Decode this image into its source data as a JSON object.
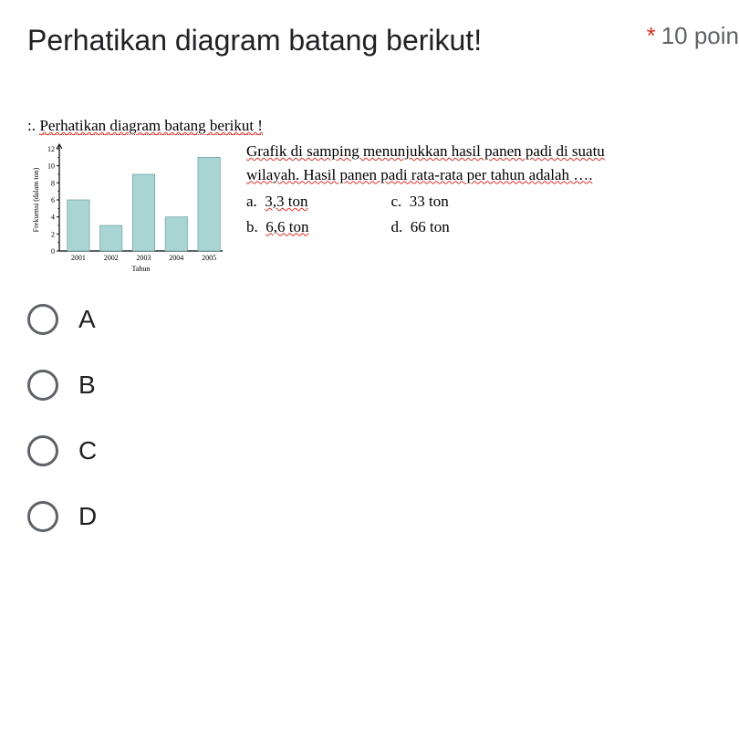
{
  "question": {
    "title": "Perhatikan diagram batang berikut!",
    "required_marker": "*",
    "points_label": "10 poin"
  },
  "embedded": {
    "prefix_number": ":.",
    "title": "Perhatikan diagram batang berikut !",
    "description_line1": "Grafik di samping menunjukkan hasil panen padi di suatu",
    "description_line2": "wilayah. Hasil panen padi rata-rata per tahun adalah ….",
    "choices": {
      "a": {
        "letter": "a.",
        "text": "3,3 ton"
      },
      "b": {
        "letter": "b.",
        "text": "6,6 ton"
      },
      "c": {
        "letter": "c.",
        "text": "33 ton"
      },
      "d": {
        "letter": "d.",
        "text": "66 ton"
      }
    }
  },
  "chart": {
    "type": "bar",
    "ylabel": "Frekuensi (dalam ton)",
    "xlabel": "Tahun",
    "categories": [
      "2001",
      "2002",
      "2003",
      "2004",
      "2005"
    ],
    "values": [
      6,
      3,
      9,
      4,
      11
    ],
    "bar_color": "#a9d4d4",
    "bar_stroke": "#5a9494",
    "axis_color": "#000000",
    "background_color": "#ffffff",
    "ylim": [
      0,
      12
    ],
    "ytick_step": 2,
    "bar_width_ratio": 0.68,
    "label_fontsize": 8,
    "tick_fontsize": 8
  },
  "answers": [
    {
      "label": "A"
    },
    {
      "label": "B"
    },
    {
      "label": "C"
    },
    {
      "label": "D"
    }
  ]
}
